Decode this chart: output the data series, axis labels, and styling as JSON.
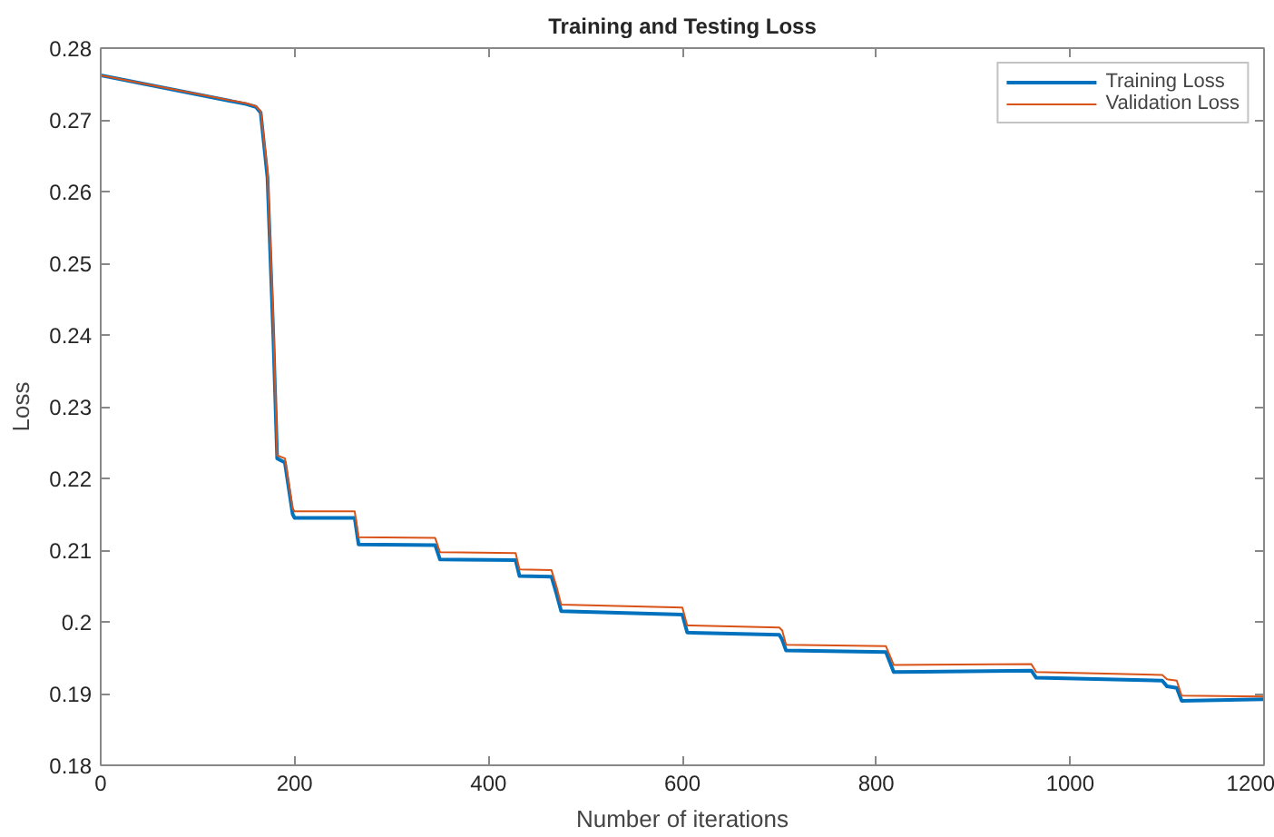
{
  "chart_data": {
    "type": "line",
    "title": "Training and Testing Loss",
    "xlabel": "Number of iterations",
    "ylabel": "Loss",
    "x": [
      0,
      150,
      160,
      165,
      172,
      178,
      182,
      190,
      198,
      200,
      262,
      266,
      345,
      350,
      428,
      432,
      465,
      470,
      475,
      600,
      605,
      700,
      703,
      707,
      810,
      818,
      960,
      965,
      1095,
      1100,
      1110,
      1115,
      1200
    ],
    "series": [
      {
        "name": "Training Loss",
        "color": "#0072bd",
        "values": [
          0.2762,
          0.2722,
          0.2718,
          0.271,
          0.262,
          0.24,
          0.2228,
          0.2222,
          0.215,
          0.2145,
          0.2145,
          0.2108,
          0.2107,
          0.2087,
          0.2086,
          0.2064,
          0.2063,
          0.204,
          0.2015,
          0.201,
          0.1985,
          0.1982,
          0.1975,
          0.196,
          0.1958,
          0.193,
          0.1932,
          0.1922,
          0.1918,
          0.191,
          0.1908,
          0.189,
          0.1892
        ]
      },
      {
        "name": "Validation Loss",
        "color": "#d95319",
        "values": [
          0.2762,
          0.2723,
          0.2719,
          0.2712,
          0.263,
          0.242,
          0.2232,
          0.2228,
          0.2158,
          0.2154,
          0.2154,
          0.2118,
          0.2117,
          0.2097,
          0.2096,
          0.2073,
          0.2072,
          0.205,
          0.2024,
          0.202,
          0.1995,
          0.1992,
          0.1988,
          0.1968,
          0.1966,
          0.194,
          0.1941,
          0.193,
          0.1926,
          0.192,
          0.1918,
          0.1897,
          0.1896
        ]
      }
    ],
    "xlim": [
      0,
      1200
    ],
    "xticks": [
      0,
      200,
      400,
      600,
      800,
      1000,
      1200
    ],
    "ylim": [
      0.18,
      0.28
    ],
    "yticks": [
      0.18,
      0.19,
      0.2,
      0.21,
      0.22,
      0.23,
      0.24,
      0.25,
      0.26,
      0.27,
      0.28
    ],
    "legend": "top right",
    "grid": false,
    "line_style": "solid"
  }
}
